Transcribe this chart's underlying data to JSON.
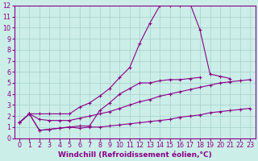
{
  "background_color": "#cceee8",
  "grid_color": "#aad4ce",
  "line_color": "#880088",
  "xlabel": "Windchill (Refroidissement éolien,°C)",
  "xlabel_fontsize": 6.5,
  "tick_fontsize": 5.8,
  "xlim": [
    -0.5,
    23.5
  ],
  "ylim": [
    0,
    12
  ],
  "xticks": [
    0,
    1,
    2,
    3,
    4,
    5,
    6,
    7,
    8,
    9,
    10,
    11,
    12,
    13,
    14,
    15,
    16,
    17,
    18,
    19,
    20,
    21,
    22,
    23
  ],
  "yticks": [
    0,
    1,
    2,
    3,
    4,
    5,
    6,
    7,
    8,
    9,
    10,
    11,
    12
  ],
  "series": [
    {
      "x": [
        0,
        1,
        2,
        3,
        4,
        5,
        6,
        7,
        8,
        9,
        10,
        11,
        12,
        13,
        14,
        15,
        16,
        17,
        18,
        19,
        20,
        21,
        22,
        23
      ],
      "y": [
        1.4,
        2.2,
        0.7,
        0.8,
        0.9,
        1.0,
        0.9,
        1.0,
        1.0,
        1.1,
        1.2,
        1.3,
        1.4,
        1.5,
        1.6,
        1.7,
        1.9,
        2.0,
        2.1,
        2.3,
        2.4,
        2.5,
        2.6,
        2.7
      ]
    },
    {
      "x": [
        0,
        1,
        2,
        3,
        4,
        5,
        6,
        7,
        8,
        9,
        10,
        11,
        12,
        13,
        14,
        15,
        16,
        17,
        18,
        19,
        20,
        21,
        22,
        23
      ],
      "y": [
        1.4,
        2.2,
        1.7,
        1.6,
        1.6,
        1.6,
        1.8,
        2.0,
        2.2,
        2.4,
        2.7,
        3.0,
        3.3,
        3.5,
        3.8,
        4.0,
        4.2,
        4.4,
        4.6,
        4.8,
        5.0,
        5.1,
        5.2,
        5.3
      ]
    },
    {
      "x": [
        0,
        1,
        2,
        3,
        4,
        5,
        6,
        7,
        8,
        9,
        10,
        11,
        12,
        13,
        14,
        15,
        16,
        17,
        18
      ],
      "y": [
        1.4,
        2.2,
        0.7,
        0.8,
        0.9,
        1.0,
        1.1,
        1.1,
        2.5,
        3.2,
        4.0,
        4.5,
        5.0,
        5.0,
        5.2,
        5.3,
        5.3,
        5.4,
        5.5
      ]
    },
    {
      "x": [
        0,
        1,
        2,
        3,
        4,
        5,
        6,
        7,
        8,
        9,
        10,
        11,
        12,
        13,
        14,
        15,
        16,
        17,
        18,
        19,
        20,
        21
      ],
      "y": [
        1.4,
        2.2,
        2.2,
        2.2,
        2.2,
        2.2,
        2.8,
        3.2,
        3.8,
        4.5,
        5.5,
        6.4,
        8.6,
        10.4,
        12.0,
        12.0,
        12.0,
        12.2,
        9.8,
        5.8,
        5.6,
        5.4
      ]
    }
  ]
}
